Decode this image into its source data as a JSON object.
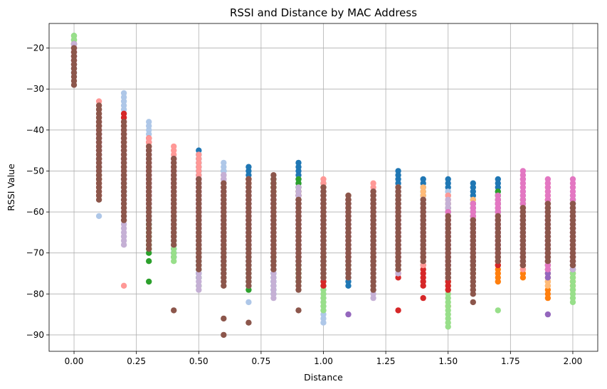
{
  "chart_data": {
    "type": "scatter",
    "title": "RSSI and Distance by MAC Address",
    "xlabel": "Distance",
    "ylabel": "RSSI Value",
    "xlim": [
      -0.1,
      2.1
    ],
    "ylim": [
      -94,
      -14
    ],
    "xticks": [
      0.0,
      0.25,
      0.5,
      0.75,
      1.0,
      1.25,
      1.5,
      1.75,
      2.0
    ],
    "xtick_labels": [
      "0.00",
      "0.25",
      "0.50",
      "0.75",
      "1.00",
      "1.25",
      "1.50",
      "1.75",
      "2.00"
    ],
    "yticks": [
      -90,
      -80,
      -70,
      -60,
      -50,
      -40,
      -30,
      -20
    ],
    "ytick_labels": [
      "−90",
      "−80",
      "−70",
      "−60",
      "−50",
      "−40",
      "−30",
      "−20"
    ],
    "grid": true,
    "distances": [
      0.0,
      0.1,
      0.2,
      0.3,
      0.4,
      0.5,
      0.6,
      0.7,
      0.8,
      0.9,
      1.0,
      1.1,
      1.2,
      1.3,
      1.4,
      1.5,
      1.6,
      1.7,
      1.8,
      1.9,
      2.0
    ],
    "series": [
      {
        "color": "#1f77b4",
        "ranges": [
          [
            -26,
            -19
          ],
          [
            -50,
            -38
          ],
          [
            -55,
            -41
          ],
          [
            -63,
            -50
          ],
          [
            -71,
            -55
          ],
          [
            -76,
            -45
          ],
          [
            -70,
            -50
          ],
          [
            -69,
            -49
          ],
          [
            -80,
            -60
          ],
          [
            -73,
            -48
          ],
          [
            -71,
            -58
          ],
          [
            -78,
            -62
          ],
          [
            -73,
            -58
          ],
          [
            -73,
            -50
          ],
          [
            -69,
            -52
          ],
          [
            -72,
            -52
          ],
          [
            -69,
            -53
          ],
          [
            -68,
            -52
          ],
          [
            -72,
            -59
          ],
          [
            -71,
            -58
          ],
          [
            -75,
            -60
          ]
        ],
        "extra": []
      },
      {
        "color": "#aec7e8",
        "ranges": [
          [
            -27,
            -19
          ],
          [
            -45,
            -36
          ],
          [
            -50,
            -31
          ],
          [
            -58,
            -38
          ],
          [
            -68,
            -50
          ],
          [
            -72,
            -52
          ],
          [
            -73,
            -48
          ],
          [
            -76,
            -55
          ],
          [
            -74,
            -55
          ],
          [
            -69,
            -52
          ],
          [
            -87,
            -60
          ],
          [
            -73,
            -56
          ],
          [
            -68,
            -55
          ],
          [
            -73,
            -58
          ],
          [
            -71,
            -57
          ],
          [
            -75,
            -55
          ],
          [
            -75,
            -60
          ],
          [
            -72,
            -60
          ],
          [
            -67,
            -55
          ],
          [
            -71,
            -60
          ],
          [
            -69,
            -56
          ]
        ],
        "extra": [
          [
            0.1,
            -61
          ],
          [
            0.7,
            -82
          ]
        ]
      },
      {
        "color": "#ff7f0e",
        "ranges": [
          [
            -24,
            -19
          ],
          [
            -46,
            -38
          ],
          [
            -50,
            -42
          ],
          [
            -59,
            -48
          ],
          [
            -60,
            -49
          ],
          [
            -65,
            -59
          ],
          [
            -69,
            -55
          ],
          [
            -66,
            -52
          ],
          [
            -68,
            -53
          ],
          [
            -72,
            -56
          ],
          [
            -73,
            -58
          ],
          [
            -74,
            -57
          ],
          [
            -73,
            -55
          ],
          [
            -73,
            -56
          ],
          [
            -68,
            -58
          ],
          [
            -78,
            -60
          ],
          [
            -75,
            -62
          ],
          [
            -77,
            -58
          ],
          [
            -76,
            -60
          ],
          [
            -81,
            -59
          ],
          [
            -79,
            -61
          ]
        ],
        "extra": [
          [
            1.5,
            -83
          ]
        ]
      },
      {
        "color": "#ffbb78",
        "ranges": [
          [
            -25,
            -19
          ],
          [
            -49,
            -39
          ],
          [
            -54,
            -41
          ],
          [
            -61,
            -47
          ],
          [
            -63,
            -52
          ],
          [
            -67,
            -52
          ],
          [
            -72,
            -56
          ],
          [
            -74,
            -52
          ],
          [
            -73,
            -55
          ],
          [
            -69,
            -54
          ],
          [
            -71,
            -56
          ],
          [
            -71,
            -56
          ],
          [
            -72,
            -59
          ],
          [
            -71,
            -54
          ],
          [
            -69,
            -54
          ],
          [
            -77,
            -56
          ],
          [
            -73,
            -57
          ],
          [
            -70,
            -56
          ],
          [
            -72,
            -57
          ],
          [
            -78,
            -53
          ],
          [
            -74,
            -60
          ]
        ],
        "extra": []
      },
      {
        "color": "#2ca02c",
        "ranges": [
          [
            -21,
            -17
          ],
          [
            -52,
            -38
          ],
          [
            -55,
            -43
          ],
          [
            -70,
            -53
          ],
          [
            -66,
            -55
          ],
          [
            -74,
            -58
          ],
          [
            -76,
            -57
          ],
          [
            -79,
            -56
          ],
          [
            -72,
            -52
          ],
          [
            -77,
            -52
          ],
          [
            -73,
            -53
          ],
          [
            -69,
            -57
          ],
          [
            -72,
            -56
          ],
          [
            -74,
            -56
          ],
          [
            -70,
            -57
          ],
          [
            -75,
            -59
          ],
          [
            -74,
            -58
          ],
          [
            -67,
            -55
          ],
          [
            -73,
            -57
          ],
          [
            -72,
            -58
          ],
          [
            -72,
            -57
          ]
        ],
        "extra": [
          [
            0.3,
            -77
          ],
          [
            0.3,
            -72
          ],
          [
            0.5,
            -76
          ],
          [
            0.5,
            -78
          ]
        ]
      },
      {
        "color": "#98df8a",
        "ranges": [
          [
            -20,
            -17
          ],
          [
            -47,
            -39
          ],
          [
            -52,
            -40
          ],
          [
            -61,
            -47
          ],
          [
            -72,
            -55
          ],
          [
            -70,
            -56
          ],
          [
            -71,
            -54
          ],
          [
            -75,
            -58
          ],
          [
            -71,
            -56
          ],
          [
            -76,
            -57
          ],
          [
            -84,
            -58
          ],
          [
            -73,
            -58
          ],
          [
            -71,
            -58
          ],
          [
            -70,
            -55
          ],
          [
            -74,
            -58
          ],
          [
            -88,
            -58
          ],
          [
            -73,
            -60
          ],
          [
            -67,
            -57
          ],
          [
            -71,
            -58
          ],
          [
            -73,
            -59
          ],
          [
            -82,
            -61
          ]
        ],
        "extra": [
          [
            1.7,
            -84
          ],
          [
            2.0,
            -79
          ]
        ]
      },
      {
        "color": "#d62728",
        "ranges": [
          [
            -23,
            -19
          ],
          [
            -56,
            -40
          ],
          [
            -52,
            -36
          ],
          [
            -57,
            -42
          ],
          [
            -66,
            -53
          ],
          [
            -71,
            -54
          ],
          [
            -69,
            -54
          ],
          [
            -70,
            -52
          ],
          [
            -70,
            -56
          ],
          [
            -72,
            -55
          ],
          [
            -78,
            -58
          ],
          [
            -72,
            -57
          ],
          [
            -73,
            -57
          ],
          [
            -76,
            -58
          ],
          [
            -78,
            -62
          ],
          [
            -79,
            -62
          ],
          [
            -73,
            -61
          ],
          [
            -73,
            -57
          ],
          [
            -73,
            -59
          ],
          [
            -70,
            -57
          ],
          [
            -72,
            -61
          ]
        ],
        "extra": [
          [
            1.3,
            -84
          ],
          [
            1.4,
            -81
          ]
        ]
      },
      {
        "color": "#ff9896",
        "ranges": [
          [
            -24,
            -19
          ],
          [
            -49,
            -33
          ],
          [
            -53,
            -39
          ],
          [
            -56,
            -42
          ],
          [
            -56,
            -44
          ],
          [
            -60,
            -46
          ],
          [
            -63,
            -51
          ],
          [
            -62,
            -53
          ],
          [
            -70,
            -55
          ],
          [
            -72,
            -56
          ],
          [
            -68,
            -52
          ],
          [
            -70,
            -57
          ],
          [
            -66,
            -53
          ],
          [
            -72,
            -54
          ],
          [
            -73,
            -57
          ],
          [
            -72,
            -56
          ],
          [
            -71,
            -60
          ],
          [
            -70,
            -57
          ],
          [
            -74,
            -59
          ],
          [
            -72,
            -58
          ],
          [
            -72,
            -58
          ]
        ],
        "extra": [
          [
            0.2,
            -78
          ]
        ]
      },
      {
        "color": "#9467bd",
        "ranges": [
          [
            -25,
            -19
          ],
          [
            -50,
            -41
          ],
          [
            -57,
            -47
          ],
          [
            -62,
            -45
          ],
          [
            -64,
            -47
          ],
          [
            -68,
            -52
          ],
          [
            -72,
            -55
          ],
          [
            -73,
            -55
          ],
          [
            -71,
            -56
          ],
          [
            -72,
            -56
          ],
          [
            -72,
            -55
          ],
          [
            -71,
            -57
          ],
          [
            -71,
            -55
          ],
          [
            -71,
            -55
          ],
          [
            -68,
            -57
          ],
          [
            -76,
            -59
          ],
          [
            -72,
            -58
          ],
          [
            -70,
            -57
          ],
          [
            -71,
            -60
          ],
          [
            -76,
            -60
          ],
          [
            -74,
            -58
          ]
        ],
        "extra": [
          [
            1.1,
            -85
          ],
          [
            1.9,
            -85
          ]
        ]
      },
      {
        "color": "#c5b0d5",
        "ranges": [
          [
            -24,
            -19
          ],
          [
            -50,
            -40
          ],
          [
            -68,
            -45
          ],
          [
            -61,
            -46
          ],
          [
            -68,
            -49
          ],
          [
            -79,
            -53
          ],
          [
            -76,
            -51
          ],
          [
            -78,
            -54
          ],
          [
            -81,
            -57
          ],
          [
            -73,
            -54
          ],
          [
            -76,
            -55
          ],
          [
            -76,
            -58
          ],
          [
            -81,
            -57
          ],
          [
            -75,
            -55
          ],
          [
            -70,
            -57
          ],
          [
            -74,
            -57
          ],
          [
            -74,
            -59
          ],
          [
            -71,
            -59
          ],
          [
            -72,
            -58
          ],
          [
            -73,
            -59
          ],
          [
            -74,
            -59
          ]
        ],
        "extra": [
          [
            0.2,
            -66
          ]
        ]
      },
      {
        "color": "#e377c2",
        "ranges": [
          [
            -23,
            -20
          ],
          [
            -45,
            -38
          ],
          [
            -52,
            -40
          ],
          [
            -58,
            -48
          ],
          [
            -60,
            -50
          ],
          [
            -64,
            -52
          ],
          [
            -67,
            -55
          ],
          [
            -68,
            -56
          ],
          [
            -70,
            -57
          ],
          [
            -71,
            -58
          ],
          [
            -70,
            -57
          ],
          [
            -72,
            -58
          ],
          [
            -71,
            -58
          ],
          [
            -72,
            -59
          ],
          [
            -71,
            -59
          ],
          [
            -73,
            -60
          ],
          [
            -70,
            -58
          ],
          [
            -70,
            -56
          ],
          [
            -72,
            -50
          ],
          [
            -74,
            -52
          ],
          [
            -72,
            -52
          ]
        ],
        "extra": [
          [
            1.8,
            -52
          ]
        ]
      },
      {
        "color": "#8c564b",
        "ranges": [
          [
            -29,
            -20
          ],
          [
            -57,
            -34
          ],
          [
            -62,
            -38
          ],
          [
            -69,
            -44
          ],
          [
            -68,
            -47
          ],
          [
            -74,
            -52
          ],
          [
            -78,
            -53
          ],
          [
            -78,
            -52
          ],
          [
            -74,
            -51
          ],
          [
            -79,
            -57
          ],
          [
            -76,
            -54
          ],
          [
            -76,
            -56
          ],
          [
            -79,
            -55
          ],
          [
            -74,
            -54
          ],
          [
            -72,
            -57
          ],
          [
            -76,
            -61
          ],
          [
            -80,
            -62
          ],
          [
            -72,
            -61
          ],
          [
            -73,
            -59
          ],
          [
            -72,
            -58
          ],
          [
            -73,
            -58
          ]
        ],
        "extra": [
          [
            0.4,
            -84
          ],
          [
            0.6,
            -86
          ],
          [
            0.6,
            -90
          ],
          [
            0.7,
            -87
          ],
          [
            0.9,
            -84
          ],
          [
            1.6,
            -82
          ]
        ]
      }
    ]
  }
}
